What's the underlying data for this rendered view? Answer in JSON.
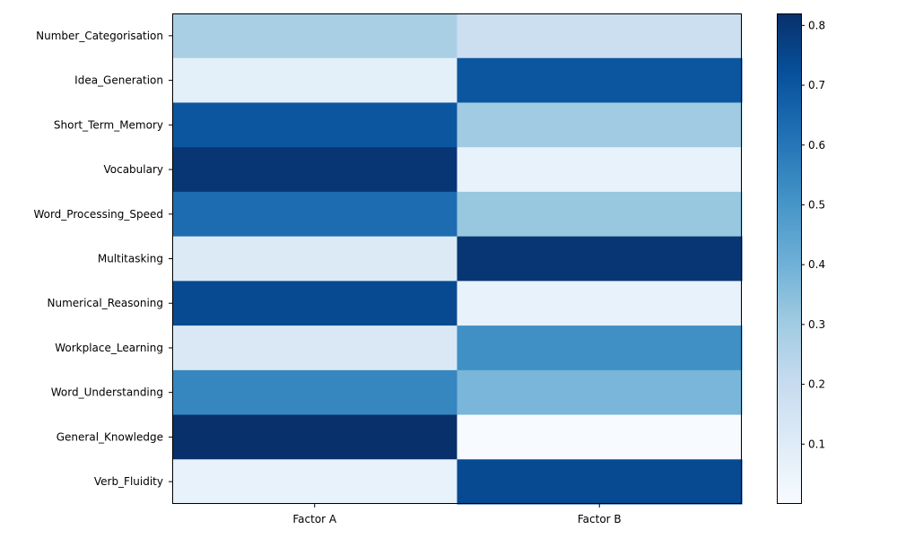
{
  "chart_data": {
    "type": "heatmap",
    "title": "",
    "xlabel": "",
    "ylabel": "",
    "columns": [
      "Factor A",
      "Factor B"
    ],
    "rows": [
      "Number_Categorisation",
      "Idea_Generation",
      "Short_Term_Memory",
      "Vocabulary",
      "Word_Processing_Speed",
      "Multitasking",
      "Numerical_Reasoning",
      "Workplace_Learning",
      "Word_Understanding",
      "General_Knowledge",
      "Verb_Fluidity"
    ],
    "values": [
      [
        0.28,
        0.18
      ],
      [
        0.08,
        0.7
      ],
      [
        0.7,
        0.3
      ],
      [
        0.8,
        0.06
      ],
      [
        0.63,
        0.32
      ],
      [
        0.11,
        0.8
      ],
      [
        0.74,
        0.06
      ],
      [
        0.12,
        0.52
      ],
      [
        0.55,
        0.38
      ],
      [
        0.82,
        0.0
      ],
      [
        0.06,
        0.74
      ]
    ],
    "colormap": "Blues",
    "colorbar": {
      "min": 0.0,
      "max": 0.82,
      "ticks": [
        0.1,
        0.2,
        0.3,
        0.4,
        0.5,
        0.6,
        0.7,
        0.8
      ],
      "tick_labels": [
        "0.1",
        "0.2",
        "0.3",
        "0.4",
        "0.5",
        "0.6",
        "0.7",
        "0.8"
      ]
    },
    "grid": false
  }
}
